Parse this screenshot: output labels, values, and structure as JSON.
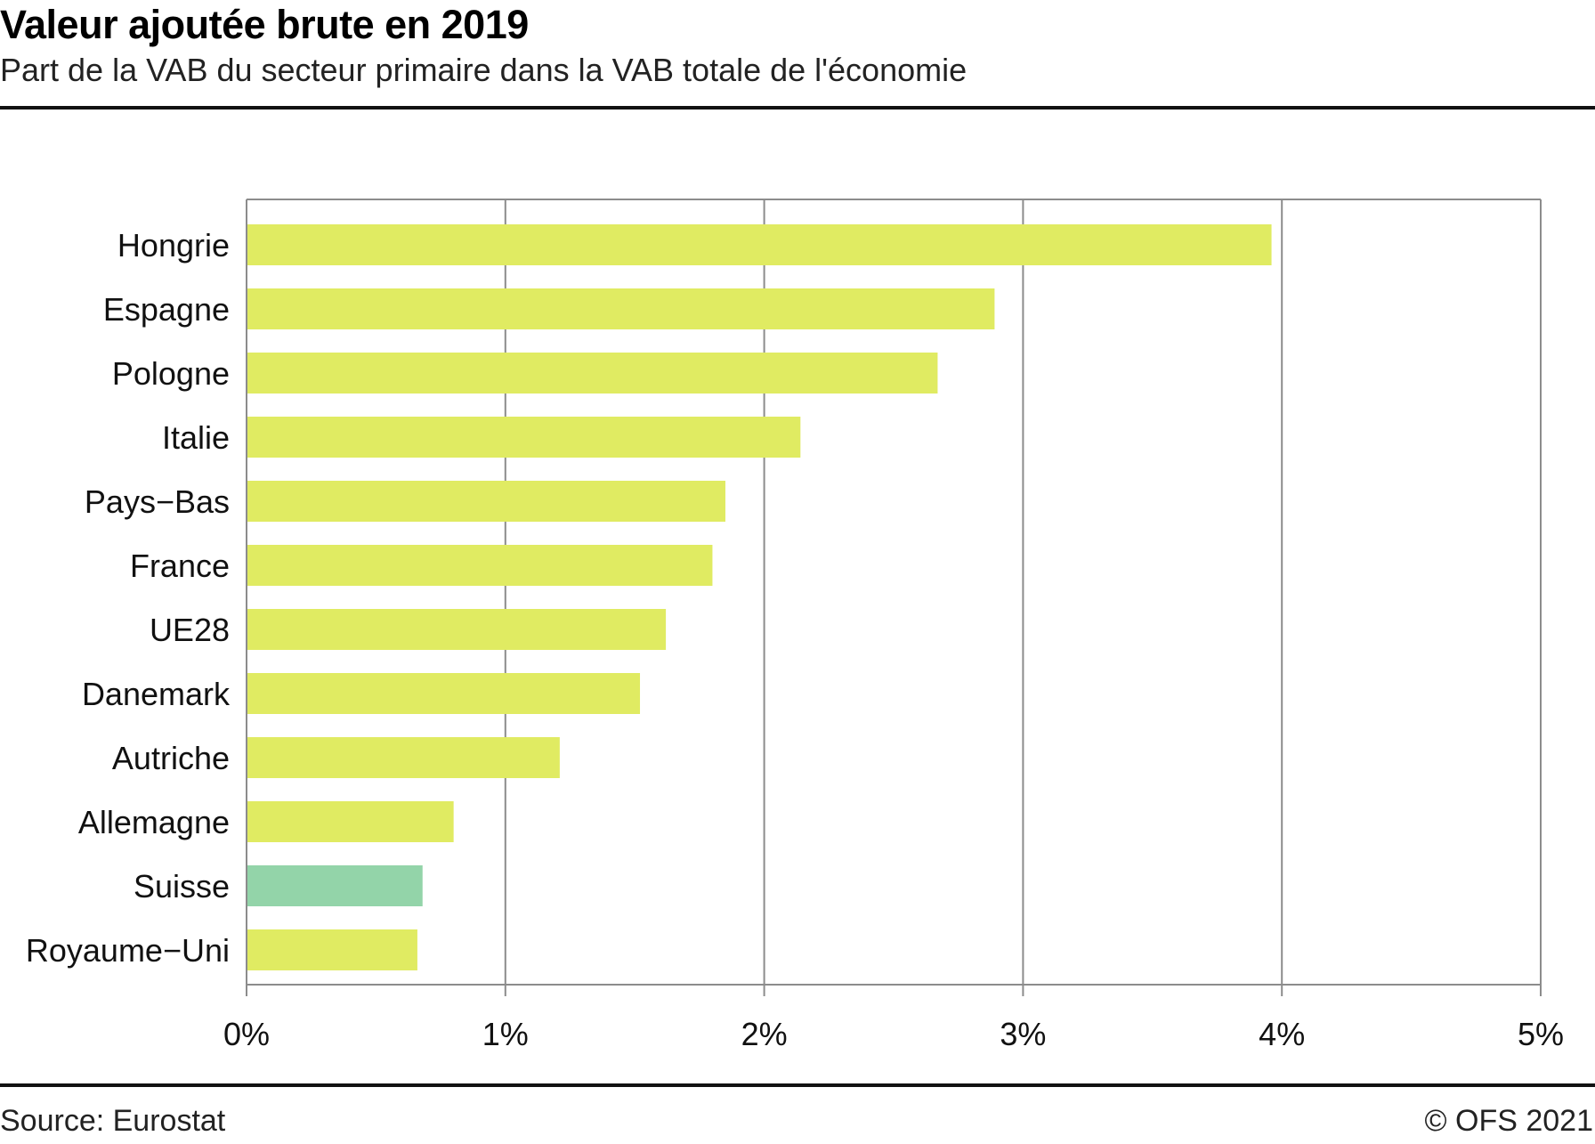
{
  "header": {
    "title": "Valeur ajoutée brute en 2019",
    "subtitle": "Part de la VAB du secteur primaire dans la VAB totale de l'économie"
  },
  "footer": {
    "source": "Source: Eurostat",
    "copyright": "© OFS 2021"
  },
  "colors": {
    "bar": "#E0EB62",
    "highlight": "#93D4A9",
    "grid": "#8C8C8C"
  },
  "chart_data": {
    "type": "bar",
    "orientation": "horizontal",
    "title": "Valeur ajoutée brute en 2019",
    "subtitle": "Part de la VAB du secteur primaire dans la VAB totale de l'économie",
    "xlabel": "",
    "ylabel": "",
    "unit": "%",
    "categories": [
      "Hongrie",
      "Espagne",
      "Pologne",
      "Italie",
      "Pays−Bas",
      "France",
      "UE28",
      "Danemark",
      "Autriche",
      "Allemagne",
      "Suisse",
      "Royaume−Uni"
    ],
    "values": [
      3.96,
      2.89,
      2.67,
      2.14,
      1.85,
      1.8,
      1.62,
      1.52,
      1.21,
      0.8,
      0.68,
      0.66
    ],
    "highlight": [
      "Suisse"
    ],
    "xlim": [
      0,
      5
    ],
    "xticks": [
      0,
      1,
      2,
      3,
      4,
      5
    ],
    "xtick_labels": [
      "0%",
      "1%",
      "2%",
      "3%",
      "4%",
      "5%"
    ],
    "grid": true,
    "legend": "none",
    "source": "Source: Eurostat"
  }
}
